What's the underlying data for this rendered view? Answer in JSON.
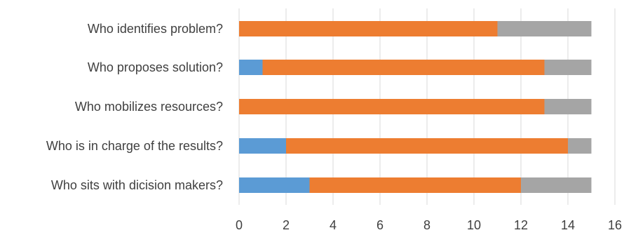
{
  "chart_data": {
    "type": "bar",
    "orientation": "horizontal",
    "stacked": true,
    "categories": [
      "Who identifies problem?",
      "Who proposes solution?",
      "Who mobilizes resources?",
      "Who is in charge of the results?",
      "Who sits with dicision makers?"
    ],
    "series": [
      {
        "color": "#5b9bd5",
        "values": [
          0,
          1,
          0,
          2,
          3
        ]
      },
      {
        "color": "#ed7d31",
        "values": [
          11,
          12,
          13,
          12,
          9
        ]
      },
      {
        "color": "#a5a5a5",
        "values": [
          4,
          2,
          2,
          1,
          3
        ]
      }
    ],
    "xlim": [
      0,
      16
    ],
    "x_ticks": [
      "0",
      "2",
      "4",
      "6",
      "8",
      "10",
      "12",
      "14",
      "16"
    ],
    "grid": "vertical",
    "legend": "none"
  }
}
